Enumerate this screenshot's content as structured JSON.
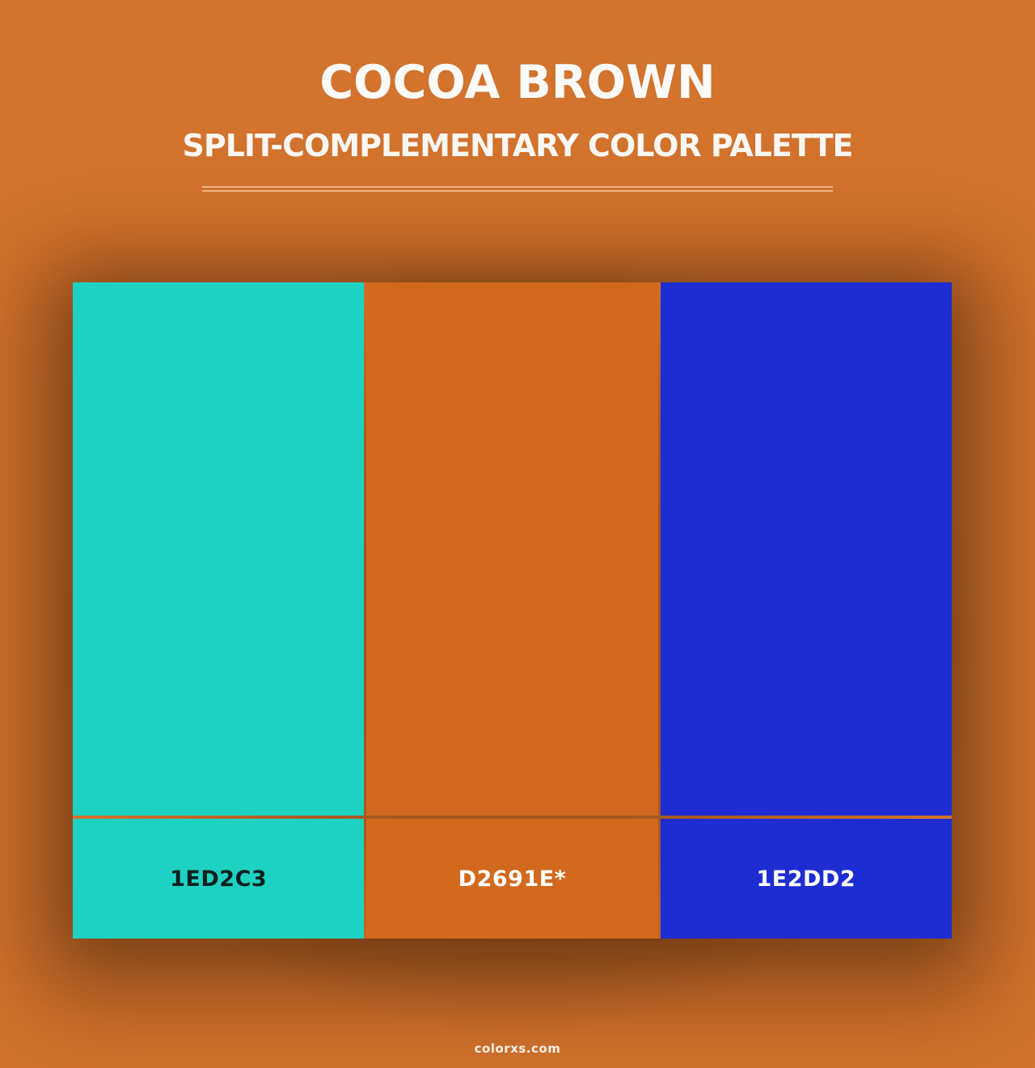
{
  "header": {
    "title": "COCOA BROWN",
    "subtitle": "SPLIT-COMPLEMENTARY COLOR PALETTE"
  },
  "palette": {
    "colors": [
      {
        "label": "1ED2C3",
        "hex": "#1ED2C3",
        "label_color": "#10201d"
      },
      {
        "label": "D2691E*",
        "hex": "#D2691E",
        "label_color": "#FFFFFF"
      },
      {
        "label": "1E2DD2",
        "hex": "#1E2DD2",
        "label_color": "#FFFFFF"
      }
    ]
  },
  "footer": {
    "site": "colorxs.com"
  },
  "theme": {
    "background": "#d2732e",
    "shadow": "rgba(76,38,9,0.5)",
    "separator": "rgba(245,210,175,0.75)",
    "heading_text": "#fbfaf8"
  }
}
